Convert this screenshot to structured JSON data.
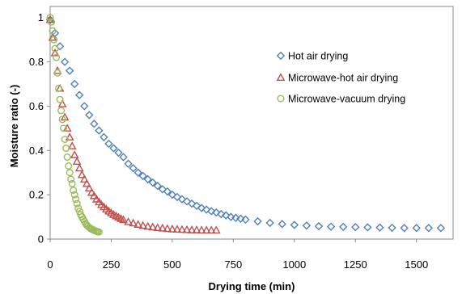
{
  "chart_data": {
    "type": "scatter",
    "xlabel": "Drying time (min)",
    "ylabel": "Moisture ratio (-)",
    "xlim": [
      0,
      1650
    ],
    "ylim": [
      0,
      1.05
    ],
    "x_ticks": [
      0,
      250,
      500,
      750,
      1000,
      1250,
      1500
    ],
    "y_ticks": [
      0,
      0.2,
      0.4,
      0.6,
      0.8,
      1
    ],
    "x_tick_labels": [
      "0",
      "250",
      "500",
      "750",
      "1000",
      "1250",
      "1500"
    ],
    "y_tick_labels": [
      "0",
      "0.2",
      "0.4",
      "0.6",
      "0.8",
      "1"
    ],
    "grid": false,
    "legend_position": "top-right",
    "series": [
      {
        "name": "Hot air drying",
        "marker": "diamond",
        "color": "#4f81bd",
        "x": [
          0,
          20,
          40,
          60,
          80,
          100,
          120,
          140,
          160,
          180,
          200,
          220,
          240,
          260,
          280,
          300,
          320,
          340,
          360,
          380,
          400,
          420,
          440,
          460,
          480,
          500,
          520,
          540,
          560,
          580,
          600,
          620,
          640,
          660,
          680,
          700,
          720,
          740,
          760,
          780,
          800,
          850,
          900,
          950,
          1000,
          1050,
          1100,
          1150,
          1200,
          1250,
          1300,
          1350,
          1400,
          1450,
          1500,
          1550,
          1600
        ],
        "y": [
          0.99,
          0.93,
          0.87,
          0.8,
          0.76,
          0.7,
          0.65,
          0.6,
          0.56,
          0.52,
          0.49,
          0.46,
          0.43,
          0.41,
          0.39,
          0.37,
          0.34,
          0.32,
          0.3,
          0.285,
          0.27,
          0.255,
          0.24,
          0.225,
          0.215,
          0.2,
          0.19,
          0.18,
          0.17,
          0.16,
          0.15,
          0.14,
          0.133,
          0.126,
          0.12,
          0.113,
          0.107,
          0.1,
          0.096,
          0.092,
          0.088,
          0.08,
          0.073,
          0.068,
          0.064,
          0.061,
          0.058,
          0.056,
          0.055,
          0.054,
          0.053,
          0.052,
          0.051,
          0.05,
          0.05,
          0.05,
          0.05
        ]
      },
      {
        "name": "Microwave-hot air drying",
        "marker": "triangle",
        "color": "#c0504d",
        "x": [
          0,
          10,
          20,
          30,
          40,
          50,
          60,
          70,
          80,
          90,
          100,
          110,
          120,
          130,
          140,
          150,
          160,
          170,
          180,
          190,
          200,
          210,
          220,
          230,
          240,
          250,
          260,
          270,
          280,
          290,
          300,
          320,
          340,
          360,
          380,
          400,
          420,
          440,
          460,
          480,
          500,
          520,
          540,
          560,
          580,
          600,
          620,
          640,
          660,
          680
        ],
        "y": [
          0.99,
          0.91,
          0.84,
          0.76,
          0.68,
          0.61,
          0.55,
          0.5,
          0.46,
          0.42,
          0.38,
          0.35,
          0.32,
          0.29,
          0.27,
          0.25,
          0.23,
          0.21,
          0.195,
          0.18,
          0.167,
          0.155,
          0.145,
          0.135,
          0.126,
          0.118,
          0.11,
          0.104,
          0.098,
          0.092,
          0.087,
          0.078,
          0.072,
          0.066,
          0.061,
          0.057,
          0.054,
          0.051,
          0.049,
          0.047,
          0.045,
          0.044,
          0.043,
          0.042,
          0.041,
          0.041,
          0.04,
          0.04,
          0.04,
          0.04
        ]
      },
      {
        "name": "Microwave-vacuum drying",
        "marker": "circle",
        "color": "#9bbb59",
        "x": [
          0,
          5,
          10,
          15,
          20,
          25,
          30,
          35,
          40,
          45,
          50,
          55,
          60,
          65,
          70,
          75,
          80,
          85,
          90,
          95,
          100,
          105,
          110,
          115,
          120,
          125,
          130,
          135,
          140,
          145,
          150,
          155,
          160,
          165,
          170,
          175,
          180,
          185,
          190,
          195,
          200
        ],
        "y": [
          1.0,
          0.98,
          0.94,
          0.9,
          0.86,
          0.82,
          0.75,
          0.68,
          0.63,
          0.58,
          0.54,
          0.5,
          0.45,
          0.41,
          0.37,
          0.33,
          0.3,
          0.27,
          0.25,
          0.22,
          0.2,
          0.18,
          0.16,
          0.14,
          0.125,
          0.11,
          0.1,
          0.09,
          0.08,
          0.07,
          0.063,
          0.057,
          0.052,
          0.048,
          0.045,
          0.042,
          0.04,
          0.037,
          0.035,
          0.033,
          0.032
        ]
      }
    ]
  }
}
